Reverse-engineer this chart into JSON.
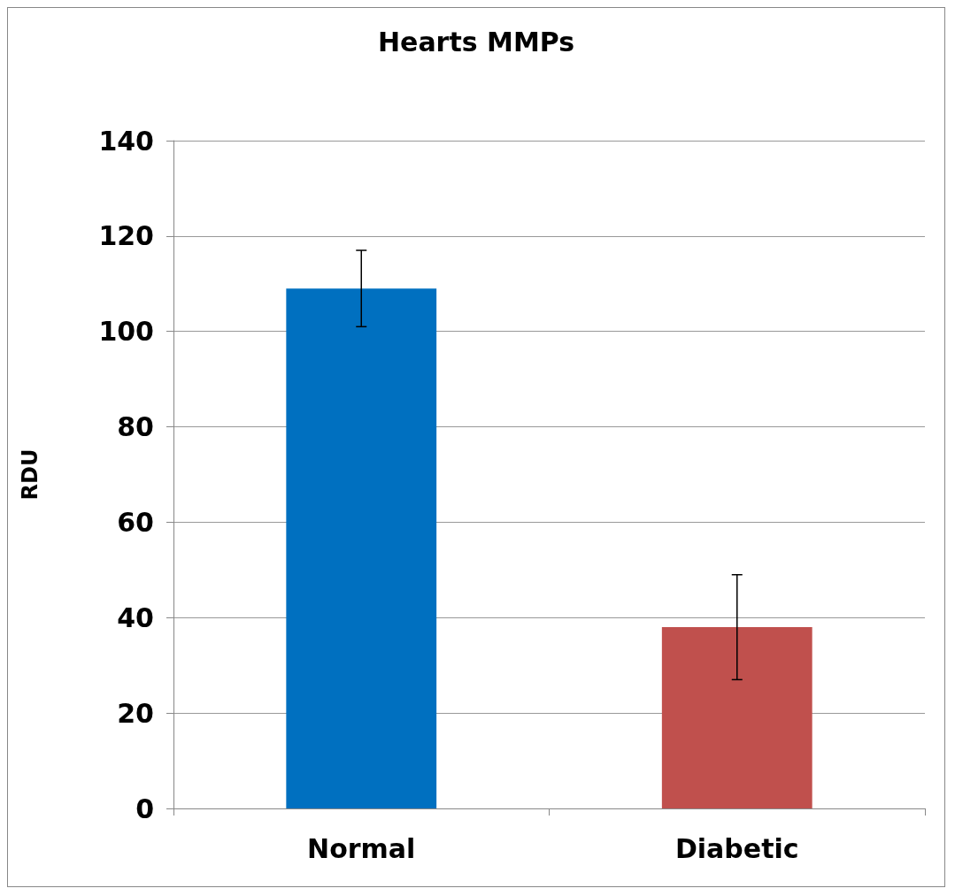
{
  "chart_data": {
    "type": "bar",
    "title": "Hearts MMPs",
    "ylabel": "RDU",
    "categories": [
      "Normal",
      "Diabetic"
    ],
    "values": [
      109,
      38
    ],
    "errors": [
      8,
      11
    ],
    "colors": [
      "#0070c0",
      "#c0504d"
    ],
    "ylim": [
      0,
      140
    ],
    "yticks": [
      0,
      20,
      40,
      60,
      80,
      100,
      120,
      140
    ],
    "grid": "y"
  }
}
